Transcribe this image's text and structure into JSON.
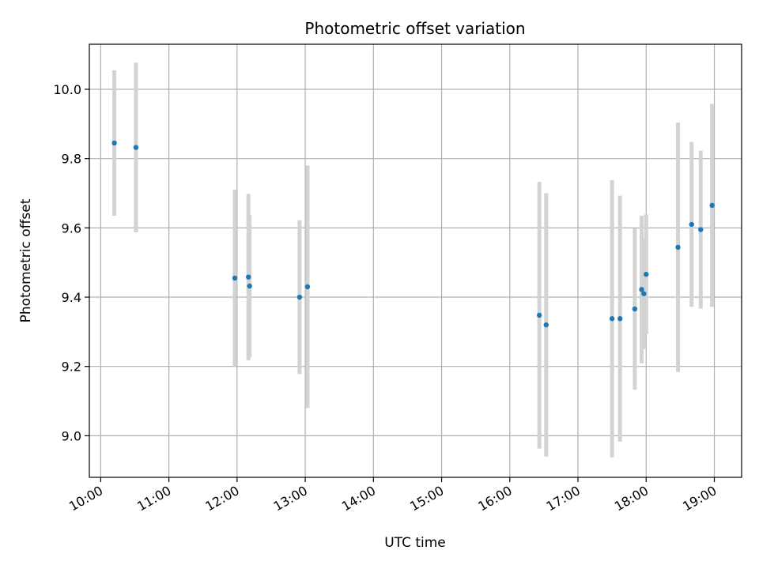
{
  "chart_data": {
    "type": "scatter",
    "title": "Photometric offset variation",
    "xlabel": "UTC time",
    "ylabel": "Photometric offset",
    "x_unit": "UTC hour",
    "x_ticks": [
      "10:00",
      "11:00",
      "12:00",
      "13:00",
      "14:00",
      "15:00",
      "16:00",
      "17:00",
      "18:00",
      "19:00"
    ],
    "y_ticks": [
      "9.0",
      "9.2",
      "9.4",
      "9.6",
      "9.8",
      "10.0"
    ],
    "xlim": [
      "09:50",
      "19:24"
    ],
    "ylim": [
      8.88,
      10.13
    ],
    "grid": true,
    "colors": {
      "point": "#1f77b4",
      "errorbar": "#d3d3d3",
      "grid": "#b0b0b0"
    },
    "points": [
      {
        "x": "10:12",
        "y": 9.845,
        "err": 0.21
      },
      {
        "x": "10:31",
        "y": 9.832,
        "err": 0.245
      },
      {
        "x": "11:58",
        "y": 9.455,
        "err": 0.255
      },
      {
        "x": "12:10",
        "y": 9.458,
        "err": 0.24
      },
      {
        "x": "12:11",
        "y": 9.432,
        "err": 0.205
      },
      {
        "x": "12:55",
        "y": 9.4,
        "err": 0.222
      },
      {
        "x": "13:02",
        "y": 9.43,
        "err": 0.35
      },
      {
        "x": "16:26",
        "y": 9.348,
        "err": 0.385
      },
      {
        "x": "16:32",
        "y": 9.32,
        "err": 0.38
      },
      {
        "x": "17:30",
        "y": 9.338,
        "err": 0.4
      },
      {
        "x": "17:37",
        "y": 9.338,
        "err": 0.355
      },
      {
        "x": "17:50",
        "y": 9.366,
        "err": 0.233
      },
      {
        "x": "17:56",
        "y": 9.422,
        "err": 0.213
      },
      {
        "x": "17:58",
        "y": 9.41,
        "err": 0.16
      },
      {
        "x": "18:00",
        "y": 9.466,
        "err": 0.173
      },
      {
        "x": "18:28",
        "y": 9.544,
        "err": 0.36
      },
      {
        "x": "18:40",
        "y": 9.61,
        "err": 0.238
      },
      {
        "x": "18:48",
        "y": 9.595,
        "err": 0.228
      },
      {
        "x": "18:58",
        "y": 9.665,
        "err": 0.293
      }
    ]
  }
}
